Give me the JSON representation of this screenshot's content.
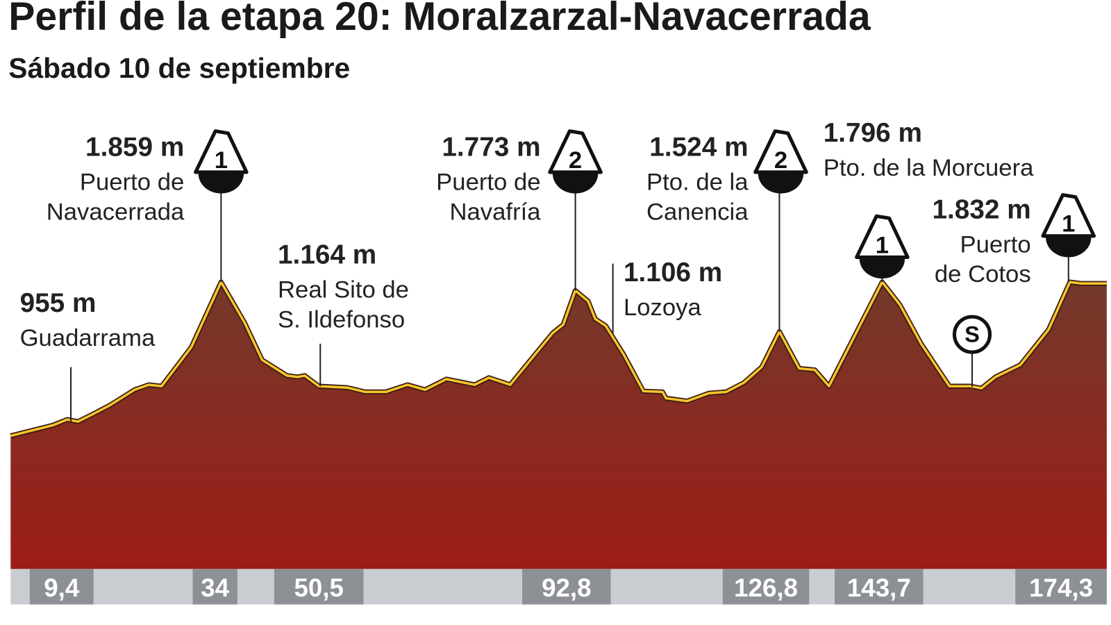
{
  "header": {
    "title": "Perfil de la etapa 20: Moralzarzal-Navacerrada",
    "subtitle": "Sábado 10 de septiembre"
  },
  "points": [
    {
      "altitude": "1.859 m",
      "lines": [
        "Puerto de",
        "Navacerrada"
      ],
      "category": "1"
    },
    {
      "altitude": "955 m",
      "lines": [
        "Guadarrama"
      ]
    },
    {
      "altitude": "1.164 m",
      "lines": [
        "Real Sito de",
        "S. Ildefonso"
      ]
    },
    {
      "altitude": "1.773 m",
      "lines": [
        "Puerto de",
        "Navafría"
      ],
      "category": "2"
    },
    {
      "altitude": "1.524 m",
      "lines": [
        "Pto. de la",
        "Canencia"
      ],
      "category": "2"
    },
    {
      "altitude": "1.106 m",
      "lines": [
        "Lozoya"
      ]
    },
    {
      "altitude": "1.796 m",
      "lines": [
        "Pto. de la Morcuera"
      ],
      "category": "1"
    },
    {
      "altitude": "1.832 m",
      "lines": [
        "Puerto",
        "de Cotos"
      ],
      "category": "1"
    }
  ],
  "sprint": "S",
  "km": [
    "9,4",
    "34",
    "50,5",
    "92,8",
    "126,8",
    "143,7",
    "174,3"
  ]
}
